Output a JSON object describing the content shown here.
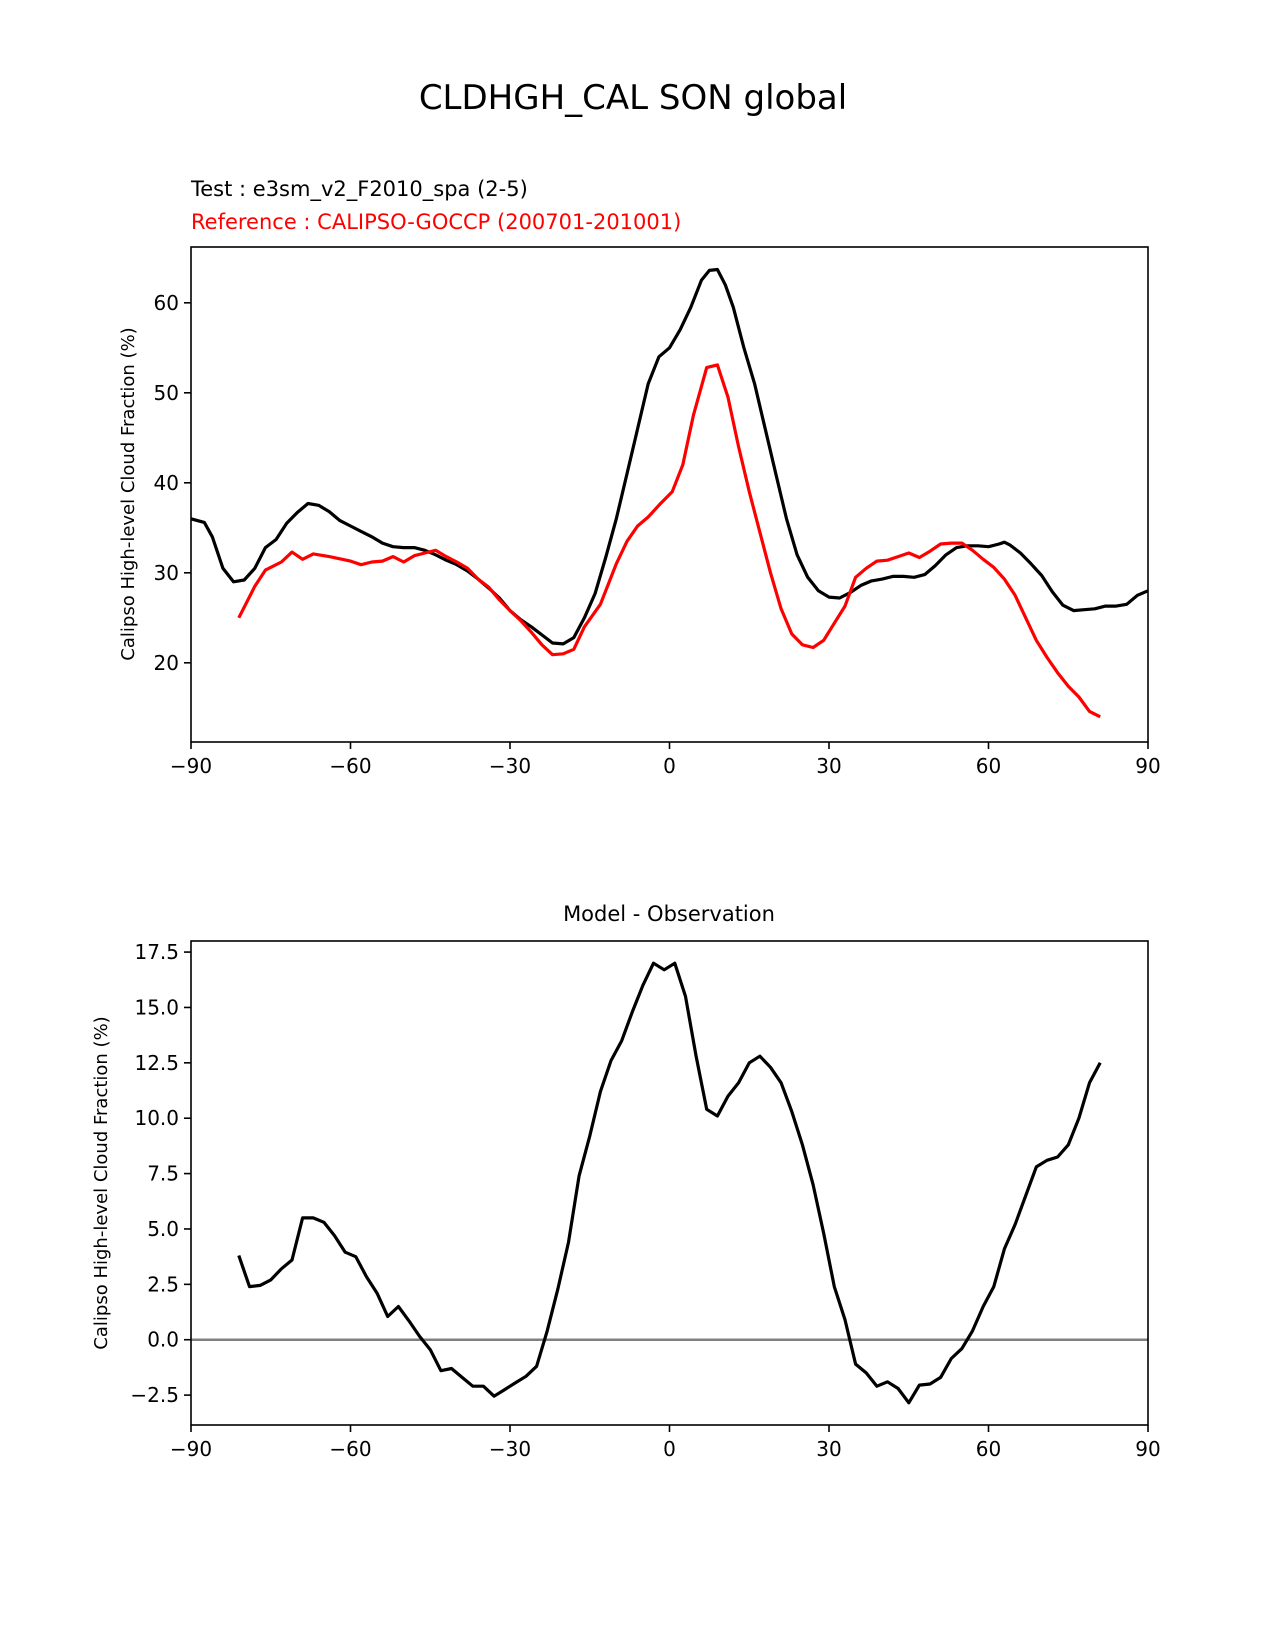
{
  "suptitle": "CLDHGH_CAL SON global",
  "chart_data": [
    {
      "type": "line",
      "test_label": "Test : e3sm_v2_F2010_spa (2-5)",
      "reference_label": "Reference : CALIPSO-GOCCP (200701-201001)",
      "xlabel": "",
      "ylabel": "Calipso High-level Cloud Fraction (%)",
      "xlim": [
        -90,
        90
      ],
      "ylim": [
        11.2,
        66.2
      ],
      "xticks": [
        "−90",
        "−60",
        "−30",
        "0",
        "30",
        "60",
        "90"
      ],
      "xtick_values": [
        -90,
        -60,
        -30,
        0,
        30,
        60,
        90
      ],
      "yticks": [
        "20",
        "30",
        "40",
        "50",
        "60"
      ],
      "ytick_values": [
        20,
        30,
        40,
        50,
        60
      ],
      "series": [
        {
          "name": "test",
          "color": "#000000",
          "x": [
            -90,
            -87.5,
            -86,
            -84,
            -82,
            -80,
            -78,
            -76,
            -74,
            -72,
            -70,
            -68,
            -66,
            -64,
            -62,
            -60,
            -58,
            -56,
            -54,
            -52,
            -50,
            -48,
            -46,
            -44,
            -42,
            -40,
            -38,
            -36,
            -34,
            -32,
            -30,
            -28,
            -26,
            -24,
            -22,
            -20,
            -18,
            -16,
            -14,
            -12,
            -10,
            -8,
            -6,
            -4,
            -2,
            0,
            2,
            4,
            6,
            7.5,
            9,
            10.5,
            12,
            14,
            16,
            18,
            20,
            22,
            24,
            26,
            28,
            30,
            32,
            34,
            36,
            38,
            40,
            42,
            44,
            46,
            48,
            50,
            52,
            54,
            56,
            58,
            60,
            62,
            63,
            64,
            66,
            68,
            70,
            72,
            74,
            76,
            78,
            80,
            82,
            84,
            86,
            88,
            90
          ],
          "y": [
            36.0,
            35.6,
            34.0,
            30.5,
            29.0,
            29.2,
            30.5,
            32.8,
            33.7,
            35.5,
            36.7,
            37.7,
            37.5,
            36.8,
            35.8,
            35.2,
            34.6,
            34.0,
            33.3,
            32.9,
            32.8,
            32.8,
            32.5,
            32.0,
            31.4,
            30.9,
            30.2,
            29.3,
            28.3,
            27.2,
            25.8,
            24.8,
            24.0,
            23.1,
            22.2,
            22.1,
            22.8,
            25.0,
            27.7,
            31.7,
            36.0,
            41.0,
            46.0,
            51.0,
            54.0,
            55.0,
            57.0,
            59.5,
            62.5,
            63.6,
            63.7,
            62.0,
            59.5,
            55.0,
            51.0,
            46.0,
            41.0,
            36.0,
            32.0,
            29.5,
            28.0,
            27.3,
            27.2,
            27.8,
            28.6,
            29.1,
            29.3,
            29.6,
            29.6,
            29.5,
            29.8,
            30.8,
            32.0,
            32.8,
            33.0,
            33.0,
            32.9,
            33.2,
            33.4,
            33.1,
            32.2,
            31.0,
            29.7,
            27.9,
            26.4,
            25.8,
            25.9,
            26.0,
            26.3,
            26.3,
            26.5,
            27.5,
            28.0
          ]
        },
        {
          "name": "reference",
          "color": "#ff0000",
          "x": [
            -81,
            -78,
            -76,
            -73,
            -71,
            -69,
            -67,
            -64,
            -60,
            -58,
            -56,
            -54,
            -52,
            -50,
            -48,
            -46,
            -44,
            -42,
            -40,
            -38,
            -36,
            -34,
            -32,
            -30,
            -28,
            -26,
            -24,
            -22,
            -20,
            -18,
            -16,
            -13,
            -10,
            -8,
            -6,
            -4,
            -2,
            0.5,
            2.5,
            4.5,
            7,
            9,
            11,
            13,
            15,
            17,
            19,
            21,
            23,
            25,
            27,
            29,
            31,
            33,
            35,
            37,
            39,
            41,
            43,
            45,
            47,
            49,
            51,
            53,
            55,
            57,
            59,
            61,
            63,
            65,
            67,
            69,
            71,
            73,
            75,
            77,
            79,
            81
          ],
          "y": [
            25.0,
            28.5,
            30.3,
            31.2,
            32.3,
            31.5,
            32.1,
            31.8,
            31.3,
            30.9,
            31.2,
            31.3,
            31.8,
            31.2,
            31.9,
            32.2,
            32.5,
            31.8,
            31.2,
            30.5,
            29.3,
            28.4,
            27.0,
            25.8,
            24.7,
            23.4,
            22.0,
            20.9,
            21.0,
            21.5,
            24.0,
            26.5,
            31.0,
            33.5,
            35.2,
            36.2,
            37.5,
            39.0,
            42.0,
            47.5,
            52.8,
            53.1,
            49.5,
            44.0,
            39.0,
            34.5,
            30.0,
            26.0,
            23.2,
            22.0,
            21.7,
            22.5,
            24.4,
            26.3,
            29.5,
            30.5,
            31.3,
            31.4,
            31.8,
            32.2,
            31.7,
            32.4,
            33.2,
            33.3,
            33.3,
            32.5,
            31.5,
            30.6,
            29.3,
            27.5,
            25.0,
            22.5,
            20.6,
            18.9,
            17.4,
            16.2,
            14.6,
            14.0
          ]
        }
      ]
    },
    {
      "type": "line",
      "title": "Model - Observation",
      "xlabel": "",
      "ylabel": "Calipso High-level Cloud Fraction (%)",
      "xlim": [
        -90,
        90
      ],
      "ylim": [
        -3.85,
        18.0
      ],
      "xticks": [
        "−90",
        "−60",
        "−30",
        "0",
        "30",
        "60",
        "90"
      ],
      "xtick_values": [
        -90,
        -60,
        -30,
        0,
        30,
        60,
        90
      ],
      "yticks": [
        "−2.5",
        "0.0",
        "2.5",
        "5.0",
        "7.5",
        "10.0",
        "12.5",
        "15.0",
        "17.5"
      ],
      "ytick_values": [
        -2.5,
        0,
        2.5,
        5,
        7.5,
        10,
        12.5,
        15,
        17.5
      ],
      "zero_line_color": "#808080",
      "series": [
        {
          "name": "difference",
          "color": "#000000",
          "x": [
            -81,
            -79,
            -77,
            -75,
            -73,
            -71,
            -69,
            -67,
            -65,
            -63,
            -61,
            -59,
            -57,
            -55,
            -53,
            -51,
            -49,
            -47,
            -45,
            -43,
            -41,
            -39,
            -37,
            -35,
            -33,
            -31,
            -29,
            -27,
            -25,
            -23,
            -21,
            -19,
            -17,
            -15,
            -13,
            -11,
            -9,
            -7,
            -5,
            -3,
            -1,
            1,
            3,
            5,
            7,
            9,
            11,
            13,
            15,
            17,
            19,
            21,
            23,
            25,
            27,
            29,
            31,
            33,
            35,
            37,
            39,
            41,
            43,
            45,
            47,
            49,
            51,
            53,
            55,
            57,
            59,
            61,
            63,
            65,
            67,
            69,
            71,
            73,
            75,
            77,
            79,
            81
          ],
          "y": [
            3.8,
            2.4,
            2.45,
            2.7,
            3.2,
            3.6,
            5.5,
            5.5,
            5.3,
            4.7,
            3.95,
            3.75,
            2.85,
            2.1,
            1.05,
            1.5,
            0.85,
            0.15,
            -0.45,
            -1.4,
            -1.3,
            -1.7,
            -2.1,
            -2.1,
            -2.55,
            -2.25,
            -1.95,
            -1.65,
            -1.2,
            0.4,
            2.3,
            4.4,
            7.4,
            9.2,
            11.2,
            12.6,
            13.5,
            14.8,
            16.0,
            17.0,
            16.7,
            17.0,
            15.5,
            12.8,
            10.4,
            10.1,
            11.0,
            11.6,
            12.5,
            12.8,
            12.3,
            11.6,
            10.3,
            8.8,
            7.0,
            4.8,
            2.4,
            0.9,
            -1.1,
            -1.5,
            -2.1,
            -1.9,
            -2.2,
            -2.85,
            -2.05,
            -2.0,
            -1.7,
            -0.85,
            -0.4,
            0.4,
            1.5,
            2.4,
            4.1,
            5.2,
            6.5,
            7.8,
            8.1,
            8.25,
            8.8,
            10.0,
            11.6,
            12.5
          ]
        }
      ]
    }
  ]
}
